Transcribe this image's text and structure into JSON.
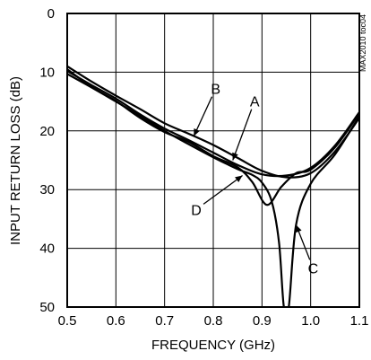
{
  "chart_data": {
    "type": "line",
    "title": "",
    "xlabel": "FREQUENCY (GHz)",
    "ylabel": "INPUT RETURN LOSS (dB)",
    "xlim": [
      0.5,
      1.1
    ],
    "ylim": [
      0,
      50
    ],
    "y_inverted": true,
    "grid": true,
    "x_ticks": [
      0.5,
      0.6,
      0.7,
      0.8,
      0.9,
      1.0,
      1.1
    ],
    "x_tick_labels": [
      "0.5",
      "0.6",
      "0.7",
      "0.8",
      "0.9",
      "1.0",
      "1.1"
    ],
    "y_ticks": [
      0,
      10,
      20,
      30,
      40,
      50
    ],
    "y_tick_labels": [
      "0",
      "10",
      "20",
      "30",
      "40",
      "50"
    ],
    "part_id": "MAX2010 toc04",
    "series": [
      {
        "name": "A",
        "x": [
          0.5,
          0.55,
          0.6,
          0.65,
          0.7,
          0.75,
          0.8,
          0.85,
          0.9,
          0.95,
          1.0,
          1.05,
          1.1
        ],
        "y": [
          9.8,
          12.2,
          14.5,
          17.2,
          19.6,
          21.6,
          23.7,
          25.8,
          27.4,
          27.6,
          26.3,
          22.5,
          16.8
        ]
      },
      {
        "name": "B",
        "x": [
          0.5,
          0.55,
          0.6,
          0.65,
          0.7,
          0.75,
          0.8,
          0.85,
          0.9,
          0.95,
          1.0,
          1.05,
          1.1
        ],
        "y": [
          9.0,
          11.6,
          14.0,
          16.3,
          18.7,
          20.5,
          22.4,
          24.6,
          26.8,
          27.9,
          27.2,
          23.5,
          17.8
        ]
      },
      {
        "name": "C",
        "x": [
          0.5,
          0.55,
          0.6,
          0.65,
          0.7,
          0.75,
          0.8,
          0.85,
          0.88,
          0.9,
          0.92,
          0.935,
          0.945,
          0.955,
          0.97,
          1.0,
          1.05,
          1.1
        ],
        "y": [
          10.3,
          12.6,
          15.0,
          17.5,
          20.0,
          22.3,
          24.5,
          26.5,
          27.5,
          28.8,
          32.0,
          39.0,
          50.0,
          50.0,
          36.0,
          29.0,
          24.0,
          17.5
        ]
      },
      {
        "name": "D",
        "x": [
          0.5,
          0.55,
          0.6,
          0.65,
          0.7,
          0.75,
          0.8,
          0.85,
          0.88,
          0.91,
          0.94,
          0.97,
          1.0,
          1.05,
          1.1
        ],
        "y": [
          9.5,
          12.5,
          14.9,
          17.8,
          20.2,
          21.9,
          24.3,
          26.2,
          28.7,
          32.6,
          29.5,
          27.2,
          26.6,
          22.8,
          17.0
        ]
      }
    ],
    "annotations": [
      {
        "label": "A",
        "text_x": 0.885,
        "text_y": 15.8,
        "arrow_to_x": 0.84,
        "arrow_to_y": 25.0
      },
      {
        "label": "B",
        "text_x": 0.805,
        "text_y": 13.7,
        "arrow_to_x": 0.76,
        "arrow_to_y": 20.9
      },
      {
        "label": "C",
        "text_x": 1.005,
        "text_y": 44.3,
        "arrow_to_x": 0.97,
        "arrow_to_y": 36.0
      },
      {
        "label": "D",
        "text_x": 0.765,
        "text_y": 34.3,
        "arrow_to_x": 0.86,
        "arrow_to_y": 27.6
      }
    ]
  }
}
